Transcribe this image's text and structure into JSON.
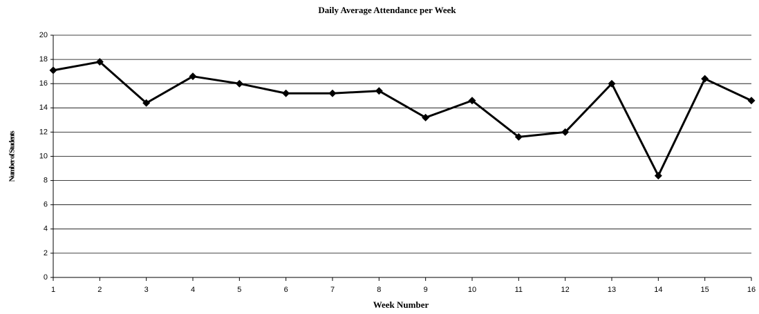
{
  "chart_data": {
    "type": "line",
    "title": "Daily Average Attendance per Week",
    "x_label": "Week Number",
    "y_label": "Number of Students",
    "x": [
      1,
      2,
      3,
      4,
      5,
      6,
      7,
      8,
      9,
      10,
      11,
      12,
      13,
      14,
      15,
      16
    ],
    "values": [
      17.1,
      17.8,
      14.4,
      16.6,
      16.0,
      15.2,
      15.2,
      15.4,
      13.2,
      14.6,
      11.6,
      12.0,
      16.0,
      8.4,
      16.4,
      14.6
    ],
    "color": "#000000",
    "xlim": [
      1,
      16
    ],
    "xticks": [
      1,
      2,
      3,
      4,
      5,
      6,
      7,
      8,
      9,
      10,
      11,
      12,
      13,
      14,
      15,
      16
    ],
    "ylim": [
      0,
      20
    ],
    "yticks": [
      0,
      2,
      4,
      6,
      8,
      10,
      12,
      14,
      16,
      18,
      20
    ],
    "grid": true
  }
}
